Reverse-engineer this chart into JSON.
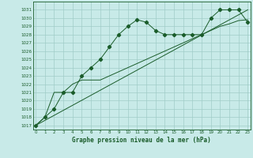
{
  "title": "Graphe pression niveau de la mer (hPa)",
  "bg_color": "#c8eae8",
  "grid_color": "#a0ccc8",
  "line_color": "#1a5c2a",
  "line1_x": [
    0,
    1,
    2,
    3,
    4,
    5,
    6,
    7,
    8,
    9,
    10,
    11,
    12,
    13,
    14,
    15,
    16,
    17,
    18,
    19,
    20,
    21,
    22,
    23
  ],
  "line1_y": [
    1017.0,
    1018.0,
    1019.0,
    1021.0,
    1021.0,
    1023.0,
    1024.0,
    1025.0,
    1026.5,
    1028.0,
    1029.0,
    1029.8,
    1029.5,
    1028.5,
    1028.0,
    1028.0,
    1028.0,
    1028.0,
    1028.0,
    1030.0,
    1031.0,
    1031.0,
    1031.0,
    1029.5
  ],
  "line2_x": [
    0,
    1,
    2,
    3,
    4,
    5,
    6,
    7,
    8,
    9,
    10,
    11,
    12,
    13,
    14,
    15,
    16,
    17,
    18,
    19,
    20,
    21,
    22,
    23
  ],
  "line2_y": [
    1017.0,
    1018.0,
    1021.0,
    1021.0,
    1022.0,
    1022.5,
    1022.5,
    1022.5,
    1023.0,
    1023.5,
    1024.0,
    1024.5,
    1025.0,
    1025.5,
    1026.0,
    1026.5,
    1027.0,
    1027.5,
    1028.0,
    1028.5,
    1029.0,
    1029.3,
    1029.7,
    1029.8
  ],
  "line3_x": [
    0,
    23
  ],
  "line3_y": [
    1017.0,
    1031.0
  ],
  "ylim": [
    1016.5,
    1032.0
  ],
  "xlim": [
    -0.3,
    23.3
  ],
  "yticks": [
    1017,
    1018,
    1019,
    1020,
    1021,
    1022,
    1023,
    1024,
    1025,
    1026,
    1027,
    1028,
    1029,
    1030,
    1031
  ],
  "xticks": [
    0,
    1,
    2,
    3,
    4,
    5,
    6,
    7,
    8,
    9,
    10,
    11,
    12,
    13,
    14,
    15,
    16,
    17,
    18,
    19,
    20,
    21,
    22,
    23
  ]
}
